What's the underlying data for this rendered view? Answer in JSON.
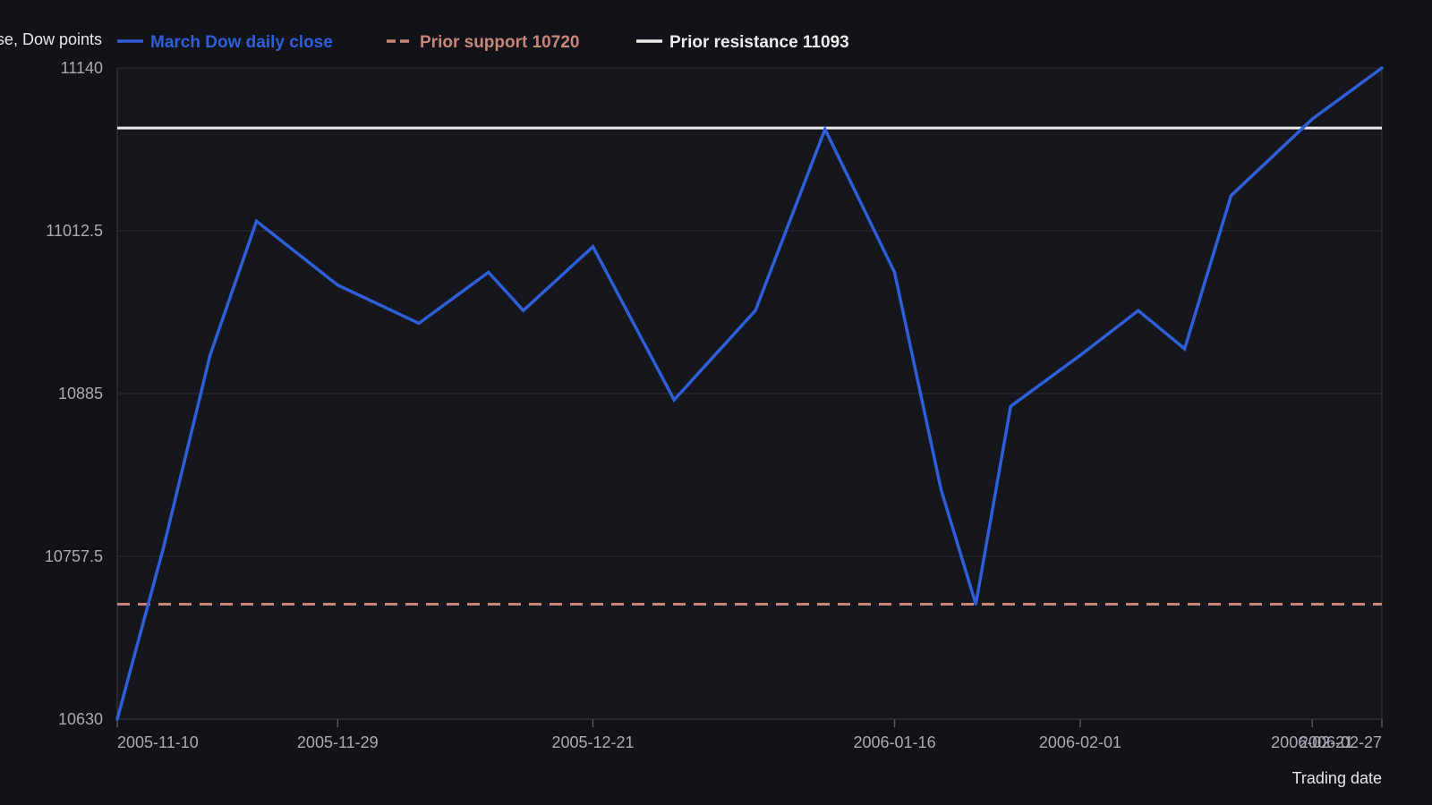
{
  "chart_data": {
    "type": "line",
    "ylabel": "Close, Dow points",
    "xlabel": "Trading date",
    "ylim": [
      10630,
      11140
    ],
    "yticks": [
      "10630",
      "10757.5",
      "10885",
      "11012.5",
      "11140"
    ],
    "xlim": [
      "2005-11-10",
      "2006-02-27"
    ],
    "xticks": [
      "2005-11-10",
      "2005-11-29",
      "2005-12-21",
      "2006-01-16",
      "2006-02-01",
      "2006-02-21",
      "2006-02-27"
    ],
    "grid": true,
    "legend_position": "top",
    "series": [
      {
        "name": "March Dow daily close",
        "color": "#2f5fd8",
        "style": "solid",
        "x": [
          "2005-11-10",
          "2005-11-14",
          "2005-11-18",
          "2005-11-22",
          "2005-11-29",
          "2005-12-06",
          "2005-12-12",
          "2005-12-15",
          "2005-12-21",
          "2005-12-28",
          "2006-01-04",
          "2006-01-10",
          "2006-01-16",
          "2006-01-20",
          "2006-01-23",
          "2006-01-26",
          "2006-02-01",
          "2006-02-06",
          "2006-02-10",
          "2006-02-14",
          "2006-02-21",
          "2006-02-27"
        ],
        "values": [
          10630,
          10765,
          10915,
          11020,
          10970,
          10940,
          10980,
          10950,
          11000,
          10880,
          10950,
          11092,
          10980,
          10810,
          10720,
          10875,
          10915,
          10950,
          10920,
          11040,
          11100,
          11140
        ]
      },
      {
        "name": "Prior support 10720",
        "color": "#c9857a",
        "style": "dashed",
        "value": 10720
      },
      {
        "name": "Prior resistance 11093",
        "color": "#ececec",
        "style": "solid",
        "value": 11093
      }
    ]
  }
}
